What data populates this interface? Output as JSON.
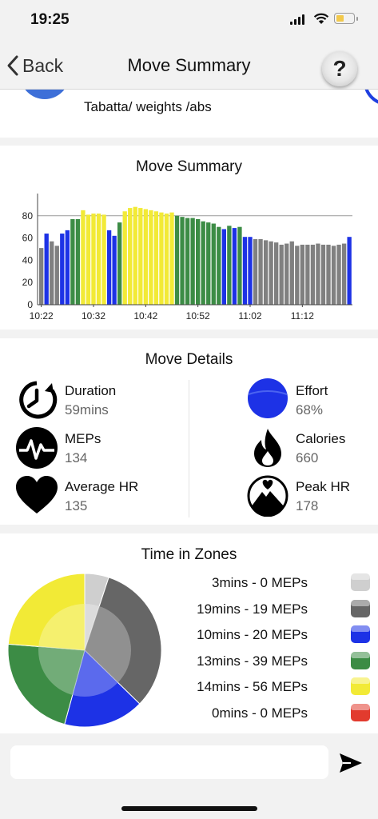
{
  "status_bar": {
    "time": "19:25"
  },
  "nav": {
    "back_label": "Back",
    "title": "Move Summary",
    "help_label": "?"
  },
  "activity": {
    "name": "Tabatta/ weights /abs"
  },
  "summary": {
    "title": "Move Summary"
  },
  "chart_data": {
    "type": "bar",
    "title": "Move Summary",
    "xlabel": "",
    "ylabel": "",
    "ylim": [
      0,
      100
    ],
    "yticks": [
      0,
      20,
      40,
      60,
      80
    ],
    "xticks": [
      {
        "minute": 0,
        "label": "10:22"
      },
      {
        "minute": 10,
        "label": "10:32"
      },
      {
        "minute": 20,
        "label": "10:42"
      },
      {
        "minute": 30,
        "label": "10:52"
      },
      {
        "minute": 40,
        "label": "11:02"
      },
      {
        "minute": 50,
        "label": "11:12"
      }
    ],
    "zone_colors": {
      "gray": "#808080",
      "blue": "#1d32e6",
      "green": "#3c8c45",
      "yellow": "#f2ea36"
    },
    "bars": [
      {
        "v": 51,
        "z": "gray"
      },
      {
        "v": 64,
        "z": "blue"
      },
      {
        "v": 57,
        "z": "gray"
      },
      {
        "v": 53,
        "z": "gray"
      },
      {
        "v": 64,
        "z": "blue"
      },
      {
        "v": 67,
        "z": "blue"
      },
      {
        "v": 77,
        "z": "green"
      },
      {
        "v": 77,
        "z": "green"
      },
      {
        "v": 85,
        "z": "yellow"
      },
      {
        "v": 81,
        "z": "yellow"
      },
      {
        "v": 82,
        "z": "yellow"
      },
      {
        "v": 82,
        "z": "yellow"
      },
      {
        "v": 81,
        "z": "yellow"
      },
      {
        "v": 67,
        "z": "blue"
      },
      {
        "v": 62,
        "z": "blue"
      },
      {
        "v": 74,
        "z": "green"
      },
      {
        "v": 84,
        "z": "yellow"
      },
      {
        "v": 87,
        "z": "yellow"
      },
      {
        "v": 88,
        "z": "yellow"
      },
      {
        "v": 87,
        "z": "yellow"
      },
      {
        "v": 86,
        "z": "yellow"
      },
      {
        "v": 85,
        "z": "yellow"
      },
      {
        "v": 84,
        "z": "yellow"
      },
      {
        "v": 83,
        "z": "yellow"
      },
      {
        "v": 82,
        "z": "yellow"
      },
      {
        "v": 83,
        "z": "yellow"
      },
      {
        "v": 80,
        "z": "green"
      },
      {
        "v": 79,
        "z": "green"
      },
      {
        "v": 78,
        "z": "green"
      },
      {
        "v": 78,
        "z": "green"
      },
      {
        "v": 77,
        "z": "green"
      },
      {
        "v": 75,
        "z": "green"
      },
      {
        "v": 74,
        "z": "green"
      },
      {
        "v": 73,
        "z": "green"
      },
      {
        "v": 70,
        "z": "green"
      },
      {
        "v": 68,
        "z": "blue"
      },
      {
        "v": 71,
        "z": "green"
      },
      {
        "v": 69,
        "z": "blue"
      },
      {
        "v": 70,
        "z": "green"
      },
      {
        "v": 61,
        "z": "blue"
      },
      {
        "v": 61,
        "z": "blue"
      },
      {
        "v": 59,
        "z": "gray"
      },
      {
        "v": 59,
        "z": "gray"
      },
      {
        "v": 58,
        "z": "gray"
      },
      {
        "v": 57,
        "z": "gray"
      },
      {
        "v": 56,
        "z": "gray"
      },
      {
        "v": 54,
        "z": "gray"
      },
      {
        "v": 55,
        "z": "gray"
      },
      {
        "v": 57,
        "z": "gray"
      },
      {
        "v": 53,
        "z": "gray"
      },
      {
        "v": 54,
        "z": "gray"
      },
      {
        "v": 54,
        "z": "gray"
      },
      {
        "v": 54,
        "z": "gray"
      },
      {
        "v": 55,
        "z": "gray"
      },
      {
        "v": 54,
        "z": "gray"
      },
      {
        "v": 54,
        "z": "gray"
      },
      {
        "v": 53,
        "z": "gray"
      },
      {
        "v": 54,
        "z": "gray"
      },
      {
        "v": 55,
        "z": "gray"
      },
      {
        "v": 61,
        "z": "blue"
      }
    ]
  },
  "details": {
    "title": "Move Details",
    "duration": {
      "label": "Duration",
      "value": "59mins"
    },
    "meps": {
      "label": "MEPs",
      "value": "134"
    },
    "average_hr": {
      "label": "Average HR",
      "value": "135"
    },
    "effort": {
      "label": "Effort",
      "value": "68%"
    },
    "calories": {
      "label": "Calories",
      "value": "660"
    },
    "peak_hr": {
      "label": "Peak HR",
      "value": "178"
    }
  },
  "zones": {
    "title": "Time in Zones",
    "items": [
      {
        "label": "3mins - 0 MEPs",
        "minutes": 3,
        "meps": 0,
        "color": "#cfcfcf"
      },
      {
        "label": "19mins - 19 MEPs",
        "minutes": 19,
        "meps": 19,
        "color": "#666666"
      },
      {
        "label": "10mins - 20 MEPs",
        "minutes": 10,
        "meps": 20,
        "color": "#1d32e6"
      },
      {
        "label": "13mins - 39 MEPs",
        "minutes": 13,
        "meps": 39,
        "color": "#3c8c45"
      },
      {
        "label": "14mins - 56 MEPs",
        "minutes": 14,
        "meps": 56,
        "color": "#f2ea36"
      },
      {
        "label": "0mins - 0 MEPs",
        "minutes": 0,
        "meps": 0,
        "color": "#e23b2e"
      }
    ]
  },
  "message": {
    "placeholder": ""
  }
}
